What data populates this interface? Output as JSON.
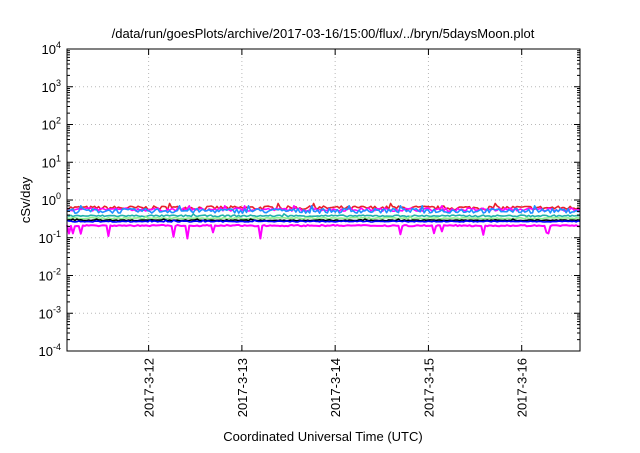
{
  "chart_data": {
    "type": "line",
    "title": "/data/run/goesPlots/archive/2017-03-16/15:00/flux/../bryn/5daysMoon.plot",
    "xlabel": "Coordinated Universal Time (UTC)",
    "ylabel": "cSv/day",
    "yscale": "log",
    "ylim": [
      0.0001,
      10000
    ],
    "y_ticks": [
      {
        "base": "10",
        "exp": "-4",
        "value": 0.0001
      },
      {
        "base": "10",
        "exp": "-3",
        "value": 0.001
      },
      {
        "base": "10",
        "exp": "-2",
        "value": 0.01
      },
      {
        "base": "10",
        "exp": "-1",
        "value": 0.1
      },
      {
        "base": "10",
        "exp": "0",
        "value": 1
      },
      {
        "base": "10",
        "exp": "1",
        "value": 10
      },
      {
        "base": "10",
        "exp": "2",
        "value": 100
      },
      {
        "base": "10",
        "exp": "3",
        "value": 1000
      },
      {
        "base": "10",
        "exp": "4",
        "value": 10000
      }
    ],
    "xlim": [
      "2017-03-11 03:00",
      "2017-03-16 15:00"
    ],
    "x_ticks": [
      "2017-3-12",
      "2017-3-13",
      "2017-3-14",
      "2017-3-15",
      "2017-3-16"
    ],
    "x_tick_dates": [
      "2017-03-12",
      "2017-03-13",
      "2017-03-14",
      "2017-03-15",
      "2017-03-16"
    ],
    "grid": true,
    "legend": "none",
    "series": [
      {
        "color": "#e8202a",
        "level": 0.62,
        "spread": 0.12
      },
      {
        "color": "#ff00ff",
        "level": 0.56,
        "spread": 0.1
      },
      {
        "color": "#1e90ff",
        "level": 0.52,
        "spread": 0.14
      },
      {
        "color": "#20b2aa",
        "level": 0.38,
        "spread": 0.05
      },
      {
        "color": "#90ee90",
        "level": 0.33,
        "spread": 0.04
      },
      {
        "color": "#000000",
        "level": 0.29,
        "spread": 0.03
      },
      {
        "color": "#0000ff",
        "level": 0.27,
        "spread": 0.03
      },
      {
        "color": "#ff00ff",
        "level": 0.21,
        "spread": 0.04,
        "dips": true
      }
    ]
  }
}
